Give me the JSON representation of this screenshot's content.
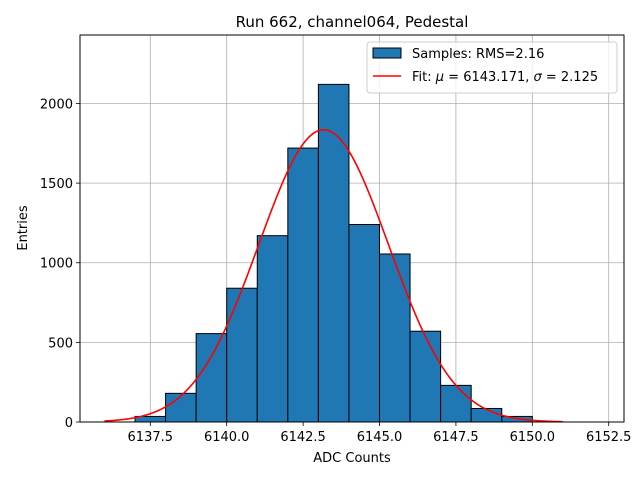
{
  "chart_data": {
    "type": "bar",
    "title": "Run 662, channel064, Pedestal",
    "xlabel": "ADC Counts",
    "ylabel": "Entries",
    "xlim": [
      6135.2,
      6153.0
    ],
    "ylim": [
      0,
      2430
    ],
    "xticks": [
      6137.5,
      6140.0,
      6142.5,
      6145.0,
      6147.5,
      6150.0,
      6152.5
    ],
    "xtick_labels": [
      "6137.5",
      "6140.0",
      "6142.5",
      "6145.0",
      "6147.5",
      "6150.0",
      "6152.5"
    ],
    "yticks": [
      0,
      500,
      1000,
      1500,
      2000
    ],
    "ytick_labels": [
      "0",
      "500",
      "1000",
      "1500",
      "2000"
    ],
    "grid": true,
    "legend_position": "top-right",
    "histogram": {
      "name": "Samples: RMS=2.16",
      "color": "#1f77b4",
      "bin_width": 1.0,
      "bin_edges": [
        6137.0,
        6138.0,
        6139.0,
        6140.0,
        6141.0,
        6142.0,
        6143.0,
        6144.0,
        6145.0,
        6146.0,
        6147.0,
        6148.0,
        6149.0,
        6150.0
      ],
      "counts": [
        35,
        180,
        555,
        840,
        1170,
        1720,
        2120,
        1240,
        1055,
        570,
        230,
        85,
        35
      ]
    },
    "fit": {
      "name_prefix": "Fit: ",
      "name_mu": "μ",
      "name_eq_mu": " = 6143.171, ",
      "name_sigma": "σ",
      "name_eq_sigma": " = 2.125",
      "color": "#ff0000",
      "mu": 6143.171,
      "sigma": 2.125,
      "amplitude": 1835,
      "x_range": [
        6136.0,
        6151.0
      ]
    }
  }
}
